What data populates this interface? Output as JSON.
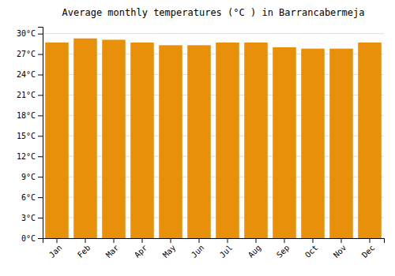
{
  "chart_data": {
    "type": "bar",
    "title": "Average monthly temperatures (°C ) in Barrancabermeja",
    "categories": [
      "Jan",
      "Feb",
      "Mar",
      "Apr",
      "May",
      "Jun",
      "Jul",
      "Aug",
      "Sep",
      "Oct",
      "Nov",
      "Dec"
    ],
    "values": [
      28.7,
      29.3,
      29.1,
      28.7,
      28.3,
      28.3,
      28.7,
      28.7,
      28.0,
      27.8,
      27.8,
      28.7
    ],
    "color": "#E8900A",
    "ylim": [
      0,
      31
    ],
    "yticks": [
      {
        "value": 0,
        "label": "0°C"
      },
      {
        "value": 3,
        "label": "3°C"
      },
      {
        "value": 6,
        "label": "6°C"
      },
      {
        "value": 9,
        "label": "9°C"
      },
      {
        "value": 12,
        "label": "12°C"
      },
      {
        "value": 15,
        "label": "15°C"
      },
      {
        "value": 18,
        "label": "18°C"
      },
      {
        "value": 21,
        "label": "21°C"
      },
      {
        "value": 24,
        "label": "24°C"
      },
      {
        "value": 27,
        "label": "27°C"
      },
      {
        "value": 30,
        "label": "30°C"
      }
    ],
    "grid": true
  }
}
